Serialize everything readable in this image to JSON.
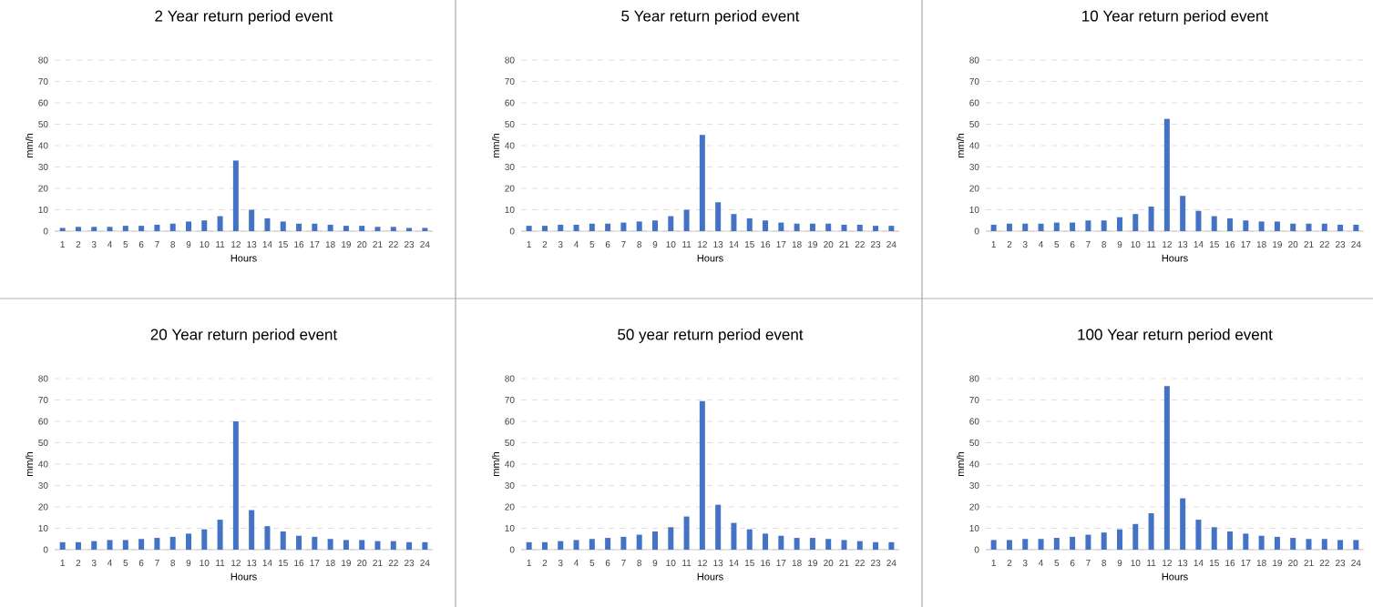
{
  "chart_data": [
    {
      "type": "bar",
      "title": "2 Year return period event",
      "xlabel": "Hours",
      "ylabel": "mm/h",
      "color": "#4472c4",
      "grid": "y",
      "ylim": [
        0,
        80
      ],
      "yticks": [
        0,
        10,
        20,
        30,
        40,
        50,
        60,
        70,
        80
      ],
      "categories": [
        "1",
        "2",
        "3",
        "4",
        "5",
        "6",
        "7",
        "8",
        "9",
        "10",
        "11",
        "12",
        "13",
        "14",
        "15",
        "16",
        "17",
        "18",
        "19",
        "20",
        "21",
        "22",
        "23",
        "24"
      ],
      "values": [
        1.5,
        2,
        2,
        2,
        2.5,
        2.5,
        3,
        3.5,
        4.5,
        5,
        7,
        33,
        10,
        6,
        4.5,
        3.5,
        3.5,
        3,
        2.5,
        2.5,
        2,
        2,
        1.5,
        1.5
      ]
    },
    {
      "type": "bar",
      "title": "5 Year return period event",
      "xlabel": "Hours",
      "ylabel": "mm/h",
      "color": "#4472c4",
      "grid": "y",
      "ylim": [
        0,
        80
      ],
      "yticks": [
        0,
        10,
        20,
        30,
        40,
        50,
        60,
        70,
        80
      ],
      "categories": [
        "1",
        "2",
        "3",
        "4",
        "5",
        "6",
        "7",
        "8",
        "9",
        "10",
        "11",
        "12",
        "13",
        "14",
        "15",
        "16",
        "17",
        "18",
        "19",
        "20",
        "21",
        "22",
        "23",
        "24"
      ],
      "values": [
        2.5,
        2.5,
        3,
        3,
        3.5,
        3.5,
        4,
        4.5,
        5,
        7,
        10,
        45,
        13.5,
        8,
        6,
        5,
        4,
        3.5,
        3.5,
        3.5,
        3,
        3,
        2.5,
        2.5
      ]
    },
    {
      "type": "bar",
      "title": "10 Year return period event",
      "xlabel": "Hours",
      "ylabel": "mm/h",
      "color": "#4472c4",
      "grid": "y",
      "ylim": [
        0,
        80
      ],
      "yticks": [
        0,
        10,
        20,
        30,
        40,
        50,
        60,
        70,
        80
      ],
      "categories": [
        "1",
        "2",
        "3",
        "4",
        "5",
        "6",
        "7",
        "8",
        "9",
        "10",
        "11",
        "12",
        "13",
        "14",
        "15",
        "16",
        "17",
        "18",
        "19",
        "20",
        "21",
        "22",
        "23",
        "24"
      ],
      "values": [
        3,
        3.5,
        3.5,
        3.5,
        4,
        4,
        5,
        5,
        6.5,
        8,
        11.5,
        52.5,
        16.5,
        9.5,
        7,
        6,
        5,
        4.5,
        4.5,
        3.5,
        3.5,
        3.5,
        3,
        3
      ]
    },
    {
      "type": "bar",
      "title": "20 Year return period event",
      "xlabel": "Hours",
      "ylabel": "mm/h",
      "color": "#4472c4",
      "grid": "y",
      "ylim": [
        0,
        80
      ],
      "yticks": [
        0,
        10,
        20,
        30,
        40,
        50,
        60,
        70,
        80
      ],
      "categories": [
        "1",
        "2",
        "3",
        "4",
        "5",
        "6",
        "7",
        "8",
        "9",
        "10",
        "11",
        "12",
        "13",
        "14",
        "15",
        "16",
        "17",
        "18",
        "19",
        "20",
        "21",
        "22",
        "23",
        "24"
      ],
      "values": [
        3.5,
        3.5,
        4,
        4.5,
        4.5,
        5,
        5.5,
        6,
        7.5,
        9.5,
        14,
        60,
        18.5,
        11,
        8.5,
        6.5,
        6,
        5,
        4.5,
        4.5,
        4,
        4,
        3.5,
        3.5
      ]
    },
    {
      "type": "bar",
      "title": "50 year return period event",
      "xlabel": "Hours",
      "ylabel": "mm/h",
      "color": "#4472c4",
      "grid": "y",
      "ylim": [
        0,
        80
      ],
      "yticks": [
        0,
        10,
        20,
        30,
        40,
        50,
        60,
        70,
        80
      ],
      "categories": [
        "1",
        "2",
        "3",
        "4",
        "5",
        "6",
        "7",
        "8",
        "9",
        "10",
        "11",
        "12",
        "13",
        "14",
        "15",
        "16",
        "17",
        "18",
        "19",
        "20",
        "21",
        "22",
        "23",
        "24"
      ],
      "values": [
        3.5,
        3.5,
        4,
        4.5,
        5,
        5.5,
        6,
        7,
        8.5,
        10.5,
        15.5,
        69.5,
        21,
        12.5,
        9.5,
        7.5,
        6.5,
        5.5,
        5.5,
        5,
        4.5,
        4,
        3.5,
        3.5
      ]
    },
    {
      "type": "bar",
      "title": "100 Year return period event",
      "xlabel": "Hours",
      "ylabel": "mm/h",
      "color": "#4472c4",
      "grid": "y",
      "ylim": [
        0,
        80
      ],
      "yticks": [
        0,
        10,
        20,
        30,
        40,
        50,
        60,
        70,
        80
      ],
      "categories": [
        "1",
        "2",
        "3",
        "4",
        "5",
        "6",
        "7",
        "8",
        "9",
        "10",
        "11",
        "12",
        "13",
        "14",
        "15",
        "16",
        "17",
        "18",
        "19",
        "20",
        "21",
        "22",
        "23",
        "24"
      ],
      "values": [
        4.5,
        4.5,
        5,
        5,
        5.5,
        6,
        7,
        8,
        9.5,
        12,
        17,
        76.5,
        24,
        14,
        10.5,
        8.5,
        7.5,
        6.5,
        6,
        5.5,
        5,
        5,
        4.5,
        4.5
      ]
    }
  ]
}
